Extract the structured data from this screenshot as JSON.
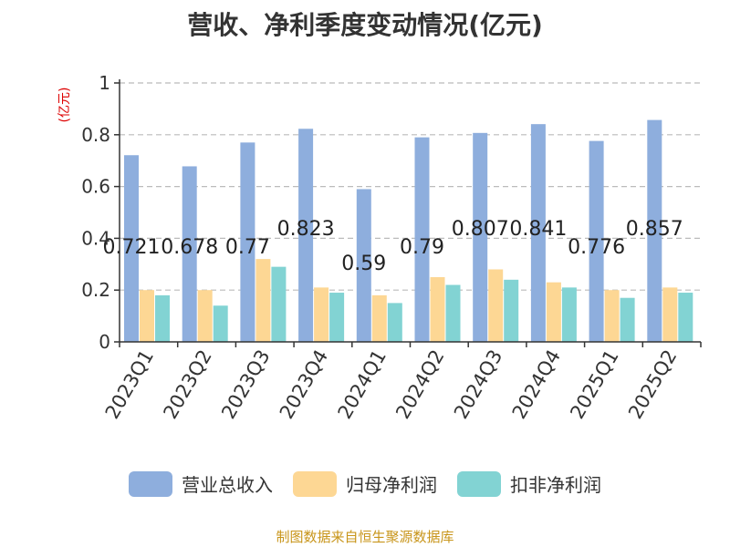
{
  "chart_data": {
    "type": "bar",
    "title": "营收、净利季度变动情况(亿元)",
    "ylabel": "(亿元)",
    "ylim": [
      0,
      1
    ],
    "yticks": [
      "0",
      "0.2",
      "0.4",
      "0.6",
      "0.8",
      "1"
    ],
    "grid": true,
    "legend_position": "bottom",
    "categories": [
      "2023Q1",
      "2023Q2",
      "2023Q3",
      "2023Q4",
      "2024Q1",
      "2024Q2",
      "2024Q3",
      "2024Q4",
      "2025Q1",
      "2025Q2"
    ],
    "series": [
      {
        "name": "营业总收入",
        "color": "#8eaedd",
        "values": [
          0.721,
          0.678,
          0.77,
          0.823,
          0.59,
          0.79,
          0.807,
          0.841,
          0.776,
          0.857
        ]
      },
      {
        "name": "归母净利润",
        "color": "#fdd794",
        "values": [
          0.2,
          0.2,
          0.32,
          0.21,
          0.18,
          0.25,
          0.28,
          0.23,
          0.2,
          0.21
        ]
      },
      {
        "name": "扣非净利润",
        "color": "#82d3d3",
        "values": [
          0.18,
          0.14,
          0.29,
          0.19,
          0.15,
          0.22,
          0.24,
          0.21,
          0.17,
          0.19
        ]
      }
    ],
    "data_labels": [
      "0.721",
      "0.678",
      "0.77",
      "0.823",
      "0.59",
      "0.79",
      "0.807",
      "0.841",
      "0.776",
      "0.857"
    ]
  },
  "source_text": "制图数据来自恒生聚源数据库"
}
